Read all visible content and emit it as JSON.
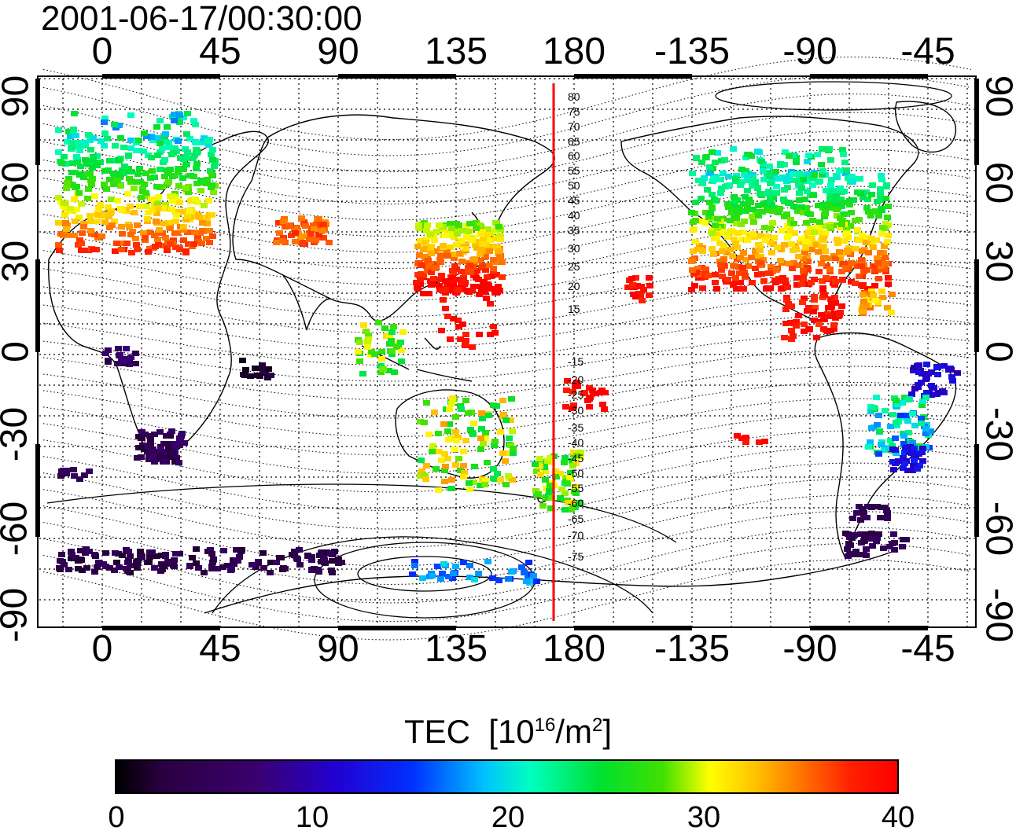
{
  "title": "2001-06-17/00:30:00",
  "lon_ticks": [
    "0",
    "45",
    "90",
    "135",
    "180",
    "-135",
    "-90",
    "-45"
  ],
  "lat_ticks": [
    "90",
    "60",
    "30",
    "0",
    "-30",
    "-60",
    "-90"
  ],
  "mlat_labels": [
    "80",
    "75",
    "70",
    "65",
    "60",
    "55",
    "50",
    "45",
    "40",
    "35",
    "30",
    "25",
    "20",
    "15",
    "-15",
    "-20",
    "-25",
    "-30",
    "-35",
    "-40",
    "-45",
    "-50",
    "-55",
    "-60",
    "-65",
    "-70",
    "-75"
  ],
  "colorbar": {
    "title": "TEC",
    "unit_prefix": "[10",
    "unit_exp1": "16",
    "unit_mid": "/m",
    "unit_exp2": "2",
    "unit_suffix": "]",
    "ticks": [
      "0",
      "10",
      "20",
      "30",
      "40"
    ]
  },
  "colors": {
    "terminator": "#ff0000",
    "coast": "#000000",
    "grid": "#000000"
  }
}
